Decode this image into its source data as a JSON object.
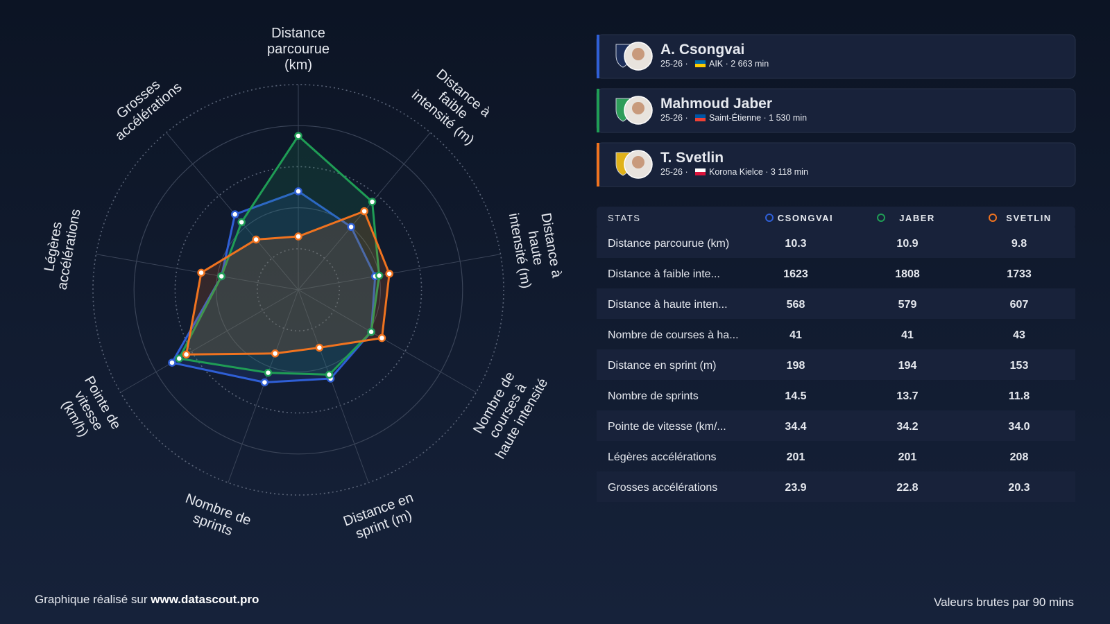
{
  "players": [
    {
      "name": "A. Csongvai",
      "season": "25-26 ·",
      "club": "AIK · 2 663 min",
      "color": "#2f5fd6"
    },
    {
      "name": "Mahmoud Jaber",
      "season": "25-26 ·",
      "club": "Saint-Étienne · 1 530 min",
      "color": "#1f9d55"
    },
    {
      "name": "T. Svetlin",
      "season": "25-26 ·",
      "club": "Korona Kielce · 3 118 min",
      "color": "#f0731f"
    }
  ],
  "table": {
    "header": [
      "STATS",
      "CSONGVAI",
      "JABER",
      "SVETLIN"
    ],
    "rows": [
      {
        "label": "Distance parcourue (km)",
        "cells": [
          {
            "text": "10.3",
            "color": "#ffffff"
          },
          {
            "text": "10.9",
            "color": "#3ecf8e"
          },
          {
            "text": "9.8",
            "color": "#f06070"
          }
        ]
      },
      {
        "label": "Distance à faible inte...",
        "cells": [
          {
            "text": "1623",
            "color": "#f06070"
          },
          {
            "text": "1808",
            "color": "#3ecf8e"
          },
          {
            "text": "1733",
            "color": "#ffffff"
          }
        ]
      },
      {
        "label": "Distance à haute inten...",
        "cells": [
          {
            "text": "568",
            "color": "#f06070"
          },
          {
            "text": "579",
            "color": "#ffffff"
          },
          {
            "text": "607",
            "color": "#3ecf8e"
          }
        ]
      },
      {
        "label": "Nombre de courses à ha...",
        "cells": [
          {
            "text": "41",
            "color": "#ffffff"
          },
          {
            "text": "41",
            "color": "#f06070"
          },
          {
            "text": "43",
            "color": "#3ecf8e"
          }
        ]
      },
      {
        "label": "Distance en sprint (m)",
        "cells": [
          {
            "text": "198",
            "color": "#3ecf8e"
          },
          {
            "text": "194",
            "color": "#ffffff"
          },
          {
            "text": "153",
            "color": "#f06070"
          }
        ]
      },
      {
        "label": "Nombre de sprints",
        "cells": [
          {
            "text": "14.5",
            "color": "#3ecf8e"
          },
          {
            "text": "13.7",
            "color": "#ffffff"
          },
          {
            "text": "11.8",
            "color": "#f06070"
          }
        ]
      },
      {
        "label": "Pointe de vitesse (km/...",
        "cells": [
          {
            "text": "34.4",
            "color": "#3ecf8e"
          },
          {
            "text": "34.2",
            "color": "#ffffff"
          },
          {
            "text": "34.0",
            "color": "#f06070"
          }
        ]
      },
      {
        "label": "Légères accélérations",
        "cells": [
          {
            "text": "201",
            "color": "#f06070"
          },
          {
            "text": "201",
            "color": "#ffffff"
          },
          {
            "text": "208",
            "color": "#3ecf8e"
          }
        ]
      },
      {
        "label": "Grosses accélérations",
        "cells": [
          {
            "text": "23.9",
            "color": "#3ecf8e"
          },
          {
            "text": "22.8",
            "color": "#ffffff"
          },
          {
            "text": "20.3",
            "color": "#f06070"
          }
        ]
      }
    ]
  },
  "chart_data": {
    "type": "radar",
    "axes": [
      "Distance\nparcourue\n(km)",
      "Distance à\nfaible\nintensité (m)",
      "Distance à\nhaute\nintensité (m)",
      "Nombre de\ncourses à\nhaute intensité",
      "Distance en\nsprint (m)",
      "Nombre de\nsprints",
      "Pointe de\nvitesse\n(km/h)",
      "Légères\naccélérations",
      "Grosses\naccélérations"
    ],
    "rlim": [
      0,
      100
    ],
    "rticks": [
      20,
      40,
      60,
      80,
      100
    ],
    "series": [
      {
        "color": "#2f5fd6",
        "values": [
          48,
          40,
          38,
          41,
          46,
          48,
          71,
          38,
          48
        ]
      },
      {
        "color": "#1f9d55",
        "values": [
          75,
          56,
          40,
          41,
          44,
          43,
          67,
          38,
          43
        ]
      },
      {
        "color": "#f0731f",
        "values": [
          26,
          50,
          45,
          47,
          30,
          33,
          63,
          48,
          32
        ]
      }
    ]
  },
  "footer": {
    "prefix": "Graphique réalisé sur",
    "link": "www.datascout.pro",
    "note": "Valeurs brutes par 90 mins"
  }
}
